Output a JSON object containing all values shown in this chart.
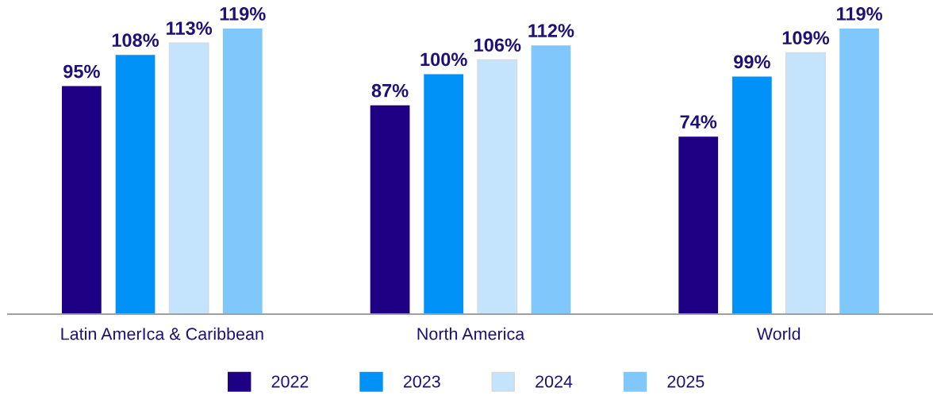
{
  "chart_data": {
    "type": "bar",
    "categories": [
      "Latin AmerIca & Caribbean",
      "North America",
      "World"
    ],
    "series": [
      {
        "name": "2022",
        "color": "#1e0084",
        "values": [
          95,
          87,
          74
        ],
        "value_labels": [
          "95%",
          "87%",
          "74%"
        ]
      },
      {
        "name": "2023",
        "color": "#0092f7",
        "values": [
          108,
          100,
          99
        ],
        "value_labels": [
          "108%",
          "100%",
          "99%"
        ]
      },
      {
        "name": "2024",
        "color": "#c4e3fc",
        "values": [
          113,
          106,
          109
        ],
        "value_labels": [
          "113%",
          "106%",
          "109%"
        ]
      },
      {
        "name": "2025",
        "color": "#80c8fb",
        "values": [
          119,
          112,
          119
        ],
        "value_labels": [
          "119%",
          "112%",
          "119%"
        ]
      }
    ],
    "tick_labels": "x",
    "legend": "bottom",
    "grid": false
  }
}
